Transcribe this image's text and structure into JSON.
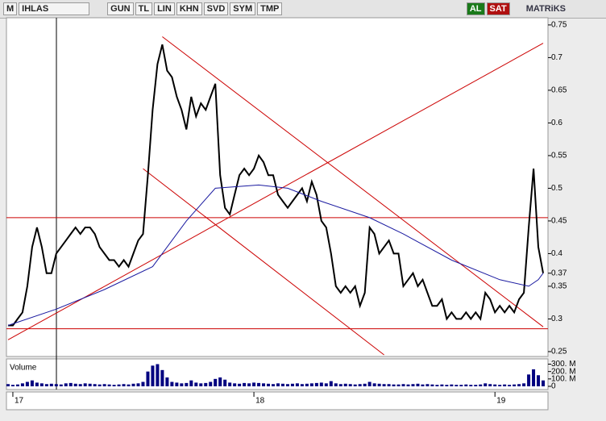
{
  "toolbar": {
    "logo": "M",
    "symbol": "IHLAS",
    "buttons": [
      "GUN",
      "TL",
      "LIN",
      "KHN",
      "SVD",
      "SYM",
      "TMP"
    ],
    "buy": "AL",
    "sell": "SAT",
    "brand": "MATRiKS"
  },
  "chart_data": {
    "type": "line",
    "x": [
      0,
      1,
      2,
      3,
      4,
      5,
      6,
      7,
      8,
      9,
      10,
      11,
      12,
      13,
      14,
      15,
      16,
      17,
      18,
      19,
      20,
      21,
      22,
      23,
      24,
      25,
      26,
      27,
      28,
      29,
      30,
      31,
      32,
      33,
      34,
      35,
      36,
      37,
      38,
      39,
      40,
      41,
      42,
      43,
      44,
      45,
      46,
      47,
      48,
      49,
      50,
      51,
      52,
      53,
      54,
      55,
      56,
      57,
      58,
      59,
      60,
      61,
      62,
      63,
      64,
      65,
      66,
      67,
      68,
      69,
      70,
      71,
      72,
      73,
      74,
      75,
      76,
      77,
      78,
      79,
      80,
      81,
      82,
      83,
      84,
      85,
      86,
      87,
      88,
      89,
      90,
      91,
      92,
      93,
      94,
      95,
      96,
      97,
      98,
      99,
      100,
      101,
      102,
      103,
      104,
      105,
      106,
      107,
      108,
      109,
      110,
      111
    ],
    "xlim": [
      -0.33,
      112
    ],
    "xticks": [
      {
        "value": 1,
        "label": "17"
      },
      {
        "value": 51,
        "label": "18"
      },
      {
        "value": 101,
        "label": "19"
      }
    ],
    "ylim": [
      0.245,
      0.761
    ],
    "yticks": [
      0.25,
      0.3,
      0.35,
      0.37,
      0.4,
      0.45,
      0.5,
      0.55,
      0.6,
      0.65,
      0.7,
      0.75
    ],
    "series": [
      {
        "color": "#000000",
        "values": [
          0.29,
          0.29,
          0.3,
          0.31,
          0.35,
          0.41,
          0.44,
          0.41,
          0.37,
          0.37,
          0.4,
          0.41,
          0.42,
          0.43,
          0.44,
          0.43,
          0.44,
          0.44,
          0.43,
          0.41,
          0.4,
          0.39,
          0.39,
          0.38,
          0.39,
          0.38,
          0.4,
          0.42,
          0.43,
          0.52,
          0.62,
          0.69,
          0.72,
          0.68,
          0.67,
          0.64,
          0.62,
          0.59,
          0.64,
          0.61,
          0.63,
          0.62,
          0.64,
          0.66,
          0.52,
          0.47,
          0.46,
          0.49,
          0.52,
          0.53,
          0.52,
          0.53,
          0.55,
          0.54,
          0.52,
          0.52,
          0.49,
          0.48,
          0.47,
          0.48,
          0.49,
          0.5,
          0.48,
          0.51,
          0.49,
          0.45,
          0.44,
          0.4,
          0.35,
          0.34,
          0.35,
          0.34,
          0.35,
          0.32,
          0.34,
          0.44,
          0.43,
          0.4,
          0.41,
          0.42,
          0.4,
          0.4,
          0.35,
          0.36,
          0.37,
          0.35,
          0.36,
          0.34,
          0.32,
          0.32,
          0.33,
          0.3,
          0.31,
          0.3,
          0.3,
          0.31,
          0.3,
          0.31,
          0.3,
          0.34,
          0.33,
          0.31,
          0.32,
          0.31,
          0.32,
          0.31,
          0.33,
          0.34,
          0.44,
          0.53,
          0.41,
          0.37
        ]
      },
      {
        "color": "#1a1aa0",
        "x": [
          0,
          10,
          20,
          30,
          37,
          43,
          52,
          58,
          65,
          75,
          82,
          92,
          102,
          108,
          110,
          111
        ],
        "values": [
          0.29,
          0.315,
          0.345,
          0.38,
          0.45,
          0.5,
          0.505,
          0.5,
          0.48,
          0.455,
          0.43,
          0.39,
          0.36,
          0.35,
          0.36,
          0.37
        ]
      }
    ],
    "hlines": [
      0.455,
      0.285
    ],
    "trendlines": [
      {
        "x": [
          0,
          111
        ],
        "values": [
          0.268,
          0.722
        ]
      },
      {
        "x": [
          32,
          111
        ],
        "values": [
          0.732,
          0.288
        ]
      },
      {
        "x": [
          28,
          78
        ],
        "values": [
          0.53,
          0.245
        ]
      }
    ],
    "line_color": "#cc0000",
    "volume": {
      "label": "Volume",
      "color": "#000080",
      "vlim": [
        0,
        360
      ],
      "vticks": [
        {
          "value": 300,
          "label": "300. M"
        },
        {
          "value": 200,
          "label": "200. M"
        },
        {
          "value": 100,
          "label": "100. M"
        },
        0
      ],
      "values": [
        30,
        20,
        25,
        40,
        60,
        80,
        50,
        40,
        30,
        35,
        30,
        25,
        40,
        45,
        35,
        30,
        40,
        35,
        30,
        25,
        30,
        25,
        20,
        25,
        30,
        25,
        35,
        40,
        60,
        200,
        280,
        300,
        220,
        120,
        60,
        50,
        40,
        45,
        80,
        50,
        40,
        45,
        60,
        100,
        120,
        90,
        50,
        40,
        35,
        45,
        40,
        50,
        45,
        40,
        35,
        30,
        40,
        35,
        30,
        35,
        40,
        30,
        35,
        40,
        45,
        50,
        40,
        70,
        40,
        30,
        35,
        30,
        25,
        30,
        35,
        60,
        40,
        35,
        30,
        30,
        25,
        25,
        30,
        25,
        30,
        35,
        25,
        30,
        25,
        20,
        25,
        20,
        25,
        20,
        20,
        25,
        20,
        20,
        25,
        40,
        30,
        25,
        20,
        25,
        20,
        25,
        30,
        40,
        160,
        230,
        150,
        80
      ]
    }
  }
}
